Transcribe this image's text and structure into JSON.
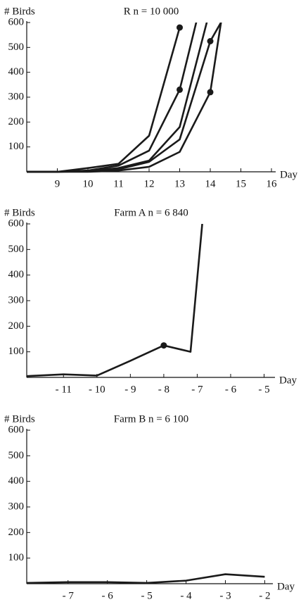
{
  "chart_data": [
    {
      "type": "line",
      "title": "R  n = 10 000",
      "y_label": "# Birds",
      "x_label": "Day",
      "x": [
        8,
        9,
        10,
        11,
        12,
        13,
        14,
        15
      ],
      "series": [
        {
          "color": "#1a1a1a",
          "values": [
            0,
            0,
            15,
            32,
            145,
            580,
            null,
            null
          ],
          "markers": [
            5
          ]
        },
        {
          "color": "#1a1a1a",
          "values": [
            0,
            0,
            5,
            25,
            85,
            330,
            830,
            null
          ],
          "markers": [
            5
          ]
        },
        {
          "color": "#1a1a1a",
          "values": [
            0,
            0,
            3,
            15,
            45,
            180,
            655,
            null
          ],
          "markers": []
        },
        {
          "color": "#1a1a1a",
          "values": [
            0,
            0,
            2,
            10,
            40,
            130,
            525,
            740
          ],
          "markers": [
            6
          ]
        },
        {
          "color": "#1a1a1a",
          "values": [
            0,
            0,
            0,
            5,
            20,
            80,
            320,
            1120
          ],
          "markers": [
            6
          ]
        }
      ],
      "xlim": [
        8,
        16
      ],
      "ylim": [
        0,
        600
      ],
      "xticks": [
        9,
        10,
        11,
        12,
        13,
        14,
        15,
        16
      ],
      "yticks": [
        100,
        200,
        300,
        400,
        500,
        600
      ]
    },
    {
      "type": "line",
      "title": "Farm A  n = 6 840",
      "y_label": "# Birds",
      "x_label": "Day",
      "x": [
        -12.1,
        -11,
        -10,
        -9,
        -8,
        -7.2,
        -6.85
      ],
      "series": [
        {
          "color": "#1a1a1a",
          "values": [
            5,
            12,
            7,
            65,
            125,
            100,
            600
          ],
          "markers": [
            4
          ]
        }
      ],
      "xlim": [
        -12.1,
        -4.8
      ],
      "ylim": [
        0,
        600
      ],
      "xticks": [
        {
          "value": -11,
          "label": "- 11"
        },
        {
          "value": -10,
          "label": "- 10"
        },
        {
          "value": -9,
          "label": "- 9"
        },
        {
          "value": -8,
          "label": "- 8"
        },
        {
          "value": -7,
          "label": "- 7"
        },
        {
          "value": -6,
          "label": "- 6"
        },
        {
          "value": -5,
          "label": "- 5"
        }
      ],
      "yticks": [
        100,
        200,
        300,
        400,
        500,
        600
      ]
    },
    {
      "type": "line",
      "title": "Farm B  n = 6 100",
      "y_label": "# Birds",
      "x_label": "Day",
      "x": [
        -8.05,
        -7,
        -6,
        -5,
        -4,
        -3,
        -2
      ],
      "series": [
        {
          "color": "#1a1a1a",
          "values": [
            3,
            6,
            6,
            3,
            12,
            37,
            27
          ],
          "markers": []
        }
      ],
      "xlim": [
        -8.05,
        -1.9
      ],
      "ylim": [
        0,
        600
      ],
      "xticks": [
        {
          "value": -7,
          "label": "- 7"
        },
        {
          "value": -6,
          "label": "- 6"
        },
        {
          "value": -5,
          "label": "- 5"
        },
        {
          "value": -4,
          "label": "- 4"
        },
        {
          "value": -3,
          "label": "- 3"
        },
        {
          "value": -2,
          "label": "- 2"
        }
      ],
      "yticks": [
        100,
        200,
        300,
        400,
        500,
        600
      ]
    }
  ]
}
